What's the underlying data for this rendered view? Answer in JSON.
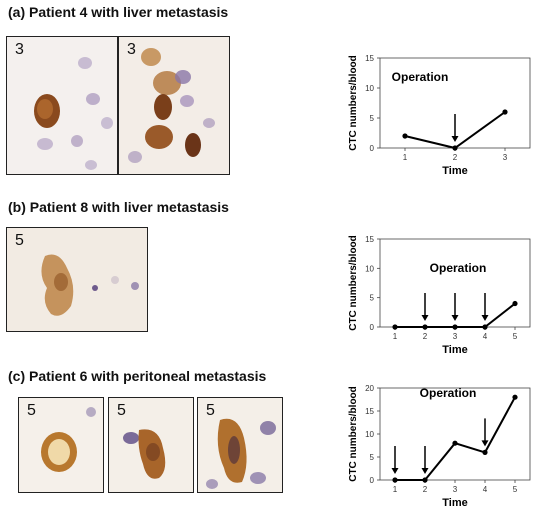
{
  "panels": [
    {
      "title": "(a) Patient 4 with liver metastasis",
      "image_labels": [
        "3",
        "3"
      ],
      "chart_data": {
        "type": "line",
        "x": [
          1,
          2,
          3
        ],
        "y": [
          2,
          0,
          6
        ],
        "xlabel": "Time",
        "ylabel": "CTC numbers/blood",
        "ylim": [
          0,
          15
        ],
        "yticks": [
          0,
          5,
          10,
          15
        ],
        "xticks": [
          "1",
          "2",
          "3"
        ],
        "annotation": "Operation",
        "arrow_x": [
          2
        ]
      }
    },
    {
      "title": "(b) Patient 8 with liver metastasis",
      "image_labels": [
        "5"
      ],
      "chart_data": {
        "type": "line",
        "x": [
          1,
          2,
          3,
          4,
          5
        ],
        "y": [
          0,
          0,
          0,
          0,
          4
        ],
        "xlabel": "Time",
        "ylabel": "CTC numbers/blood",
        "ylim": [
          0,
          15
        ],
        "yticks": [
          0,
          5,
          10,
          15
        ],
        "xticks": [
          "1",
          "2",
          "3",
          "4",
          "5"
        ],
        "annotation": "Operation",
        "arrow_x": [
          2,
          3,
          4
        ]
      }
    },
    {
      "title": "(c) Patient 6 with peritoneal metastasis",
      "image_labels": [
        "5",
        "5",
        "5"
      ],
      "chart_data": {
        "type": "line",
        "x": [
          1,
          2,
          3,
          4,
          5
        ],
        "y": [
          0,
          0,
          8,
          6,
          18
        ],
        "xlabel": "Time",
        "ylabel": "CTC numbers/blood",
        "ylim": [
          0,
          20
        ],
        "yticks": [
          0,
          5,
          10,
          15,
          20
        ],
        "xticks": [
          "1",
          "2",
          "3",
          "4",
          "5"
        ],
        "annotation": "Operation",
        "arrow_x": [
          1,
          2,
          4
        ]
      }
    }
  ],
  "colors": {
    "stain_brown": "#9a5a2a",
    "nucleus_purple": "#6e5a8c",
    "background_tan": "#f2ebe3"
  }
}
